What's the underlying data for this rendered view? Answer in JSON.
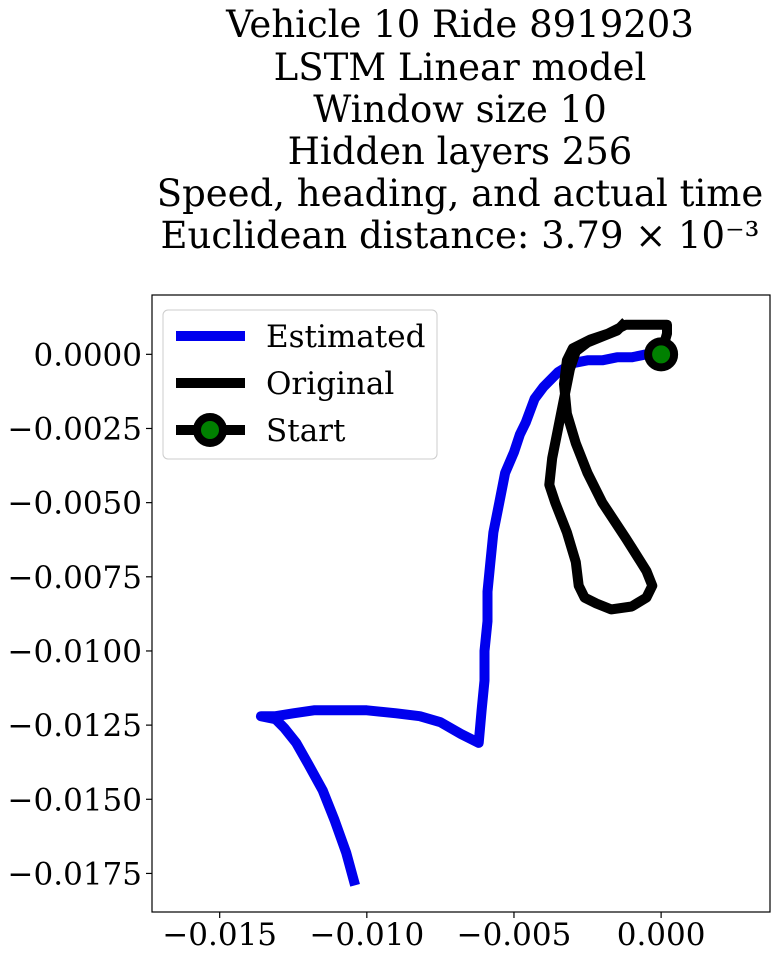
{
  "chart_data": {
    "type": "line",
    "title_lines": [
      "Vehicle 10 Ride 8919203",
      "LSTM Linear model",
      "Window size 10",
      "Hidden layers 256",
      "Speed, heading, and actual time",
      "Euclidean distance: 3.79 × 10⁻³"
    ],
    "xlabel": "",
    "ylabel": "",
    "xlim": [
      -0.0173,
      0.0037
    ],
    "ylim": [
      -0.0188,
      0.002
    ],
    "xticks": [
      -0.015,
      -0.01,
      -0.005,
      0.0
    ],
    "xtick_labels": [
      "−0.015",
      "−0.010",
      "−0.005",
      "0.000"
    ],
    "yticks": [
      0.0,
      -0.0025,
      -0.005,
      -0.0075,
      -0.01,
      -0.0125,
      -0.015,
      -0.0175
    ],
    "ytick_labels": [
      "0.0000",
      "−0.0025",
      "−0.0050",
      "−0.0075",
      "−0.0100",
      "−0.0125",
      "−0.0150",
      "−0.0175"
    ],
    "grid": false,
    "legend_position": "top-left",
    "series": [
      {
        "name": "Estimated",
        "color": "#0000ee",
        "points": [
          [
            0.0,
            0.0
          ],
          [
            -0.0005,
            0.0
          ],
          [
            -0.001,
            -0.0001
          ],
          [
            -0.0015,
            -0.0001
          ],
          [
            -0.002,
            -0.0002
          ],
          [
            -0.0025,
            -0.0002
          ],
          [
            -0.003,
            -0.0003
          ],
          [
            -0.0035,
            -0.0006
          ],
          [
            -0.004,
            -0.0011
          ],
          [
            -0.0043,
            -0.0015
          ],
          [
            -0.0046,
            -0.0023
          ],
          [
            -0.0048,
            -0.0027
          ],
          [
            -0.005,
            -0.0033
          ],
          [
            -0.0053,
            -0.004
          ],
          [
            -0.0055,
            -0.005
          ],
          [
            -0.0057,
            -0.006
          ],
          [
            -0.0058,
            -0.007
          ],
          [
            -0.0059,
            -0.008
          ],
          [
            -0.0059,
            -0.009
          ],
          [
            -0.006,
            -0.01
          ],
          [
            -0.006,
            -0.011
          ],
          [
            -0.0061,
            -0.012
          ],
          [
            -0.0062,
            -0.0131
          ],
          [
            -0.0068,
            -0.0128
          ],
          [
            -0.0075,
            -0.0124
          ],
          [
            -0.0082,
            -0.0122
          ],
          [
            -0.009,
            -0.0121
          ],
          [
            -0.01,
            -0.012
          ],
          [
            -0.011,
            -0.012
          ],
          [
            -0.0118,
            -0.012
          ],
          [
            -0.0125,
            -0.0121
          ],
          [
            -0.0131,
            -0.0122
          ],
          [
            -0.0136,
            -0.0122
          ],
          [
            -0.0131,
            -0.0123
          ],
          [
            -0.0128,
            -0.0126
          ],
          [
            -0.0124,
            -0.0131
          ],
          [
            -0.012,
            -0.0138
          ],
          [
            -0.0115,
            -0.0147
          ],
          [
            -0.0111,
            -0.0157
          ],
          [
            -0.0107,
            -0.0168
          ],
          [
            -0.0104,
            -0.0179
          ]
        ]
      },
      {
        "name": "Original",
        "color": "#000000",
        "points": [
          [
            0.0,
            0.0
          ],
          [
            0.0002,
            0.0007
          ],
          [
            0.0002,
            0.001
          ],
          [
            -0.0005,
            0.001
          ],
          [
            -0.0012,
            0.001
          ],
          [
            -0.0018,
            0.0007
          ],
          [
            -0.0024,
            0.0005
          ],
          [
            -0.003,
            0.0002
          ],
          [
            -0.0032,
            -0.0002
          ],
          [
            -0.0033,
            -0.001
          ],
          [
            -0.0032,
            -0.002
          ],
          [
            -0.0029,
            -0.003
          ],
          [
            -0.0025,
            -0.004
          ],
          [
            -0.002,
            -0.005
          ],
          [
            -0.0012,
            -0.0062
          ],
          [
            -0.0005,
            -0.0073
          ],
          [
            -0.0003,
            -0.0078
          ],
          [
            -0.0005,
            -0.0082
          ],
          [
            -0.001,
            -0.0085
          ],
          [
            -0.0017,
            -0.0086
          ],
          [
            -0.0022,
            -0.0084
          ],
          [
            -0.0026,
            -0.0082
          ],
          [
            -0.0028,
            -0.0078
          ],
          [
            -0.0029,
            -0.007
          ],
          [
            -0.0032,
            -0.006
          ],
          [
            -0.0036,
            -0.005
          ],
          [
            -0.0038,
            -0.0044
          ],
          [
            -0.0037,
            -0.0035
          ],
          [
            -0.0035,
            -0.0025
          ],
          [
            -0.0033,
            -0.0015
          ],
          [
            -0.0031,
            -0.0005
          ],
          [
            -0.0029,
            0.0001
          ],
          [
            -0.0025,
            0.0004
          ],
          [
            -0.002,
            0.0006
          ],
          [
            -0.0015,
            0.0008
          ],
          [
            -0.0012,
            0.0011
          ]
        ]
      }
    ],
    "start_marker": {
      "name": "Start",
      "x": 0.0,
      "y": 0.0,
      "edge_color": "#000000",
      "face_color": "#008000"
    }
  }
}
